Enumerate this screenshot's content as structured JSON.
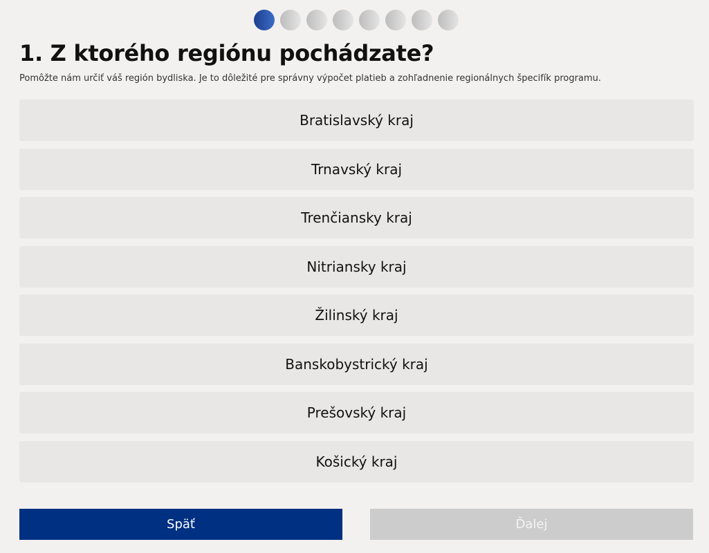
{
  "question": {
    "title": "1. Z ktorého regiónu pochádzate?",
    "subtitle": "Pomôžte nám určiť váš región bydliska. Je to dôležité pre správny výpočet platieb a zohľadnenie regionálnych špecifík programu.",
    "options": [
      "Bratislavský kraj",
      "Trnavský kraj",
      "Trenčiansky kraj",
      "Nitriansky kraj",
      "Žilinský kraj",
      "Banskobystrický kraj",
      "Prešovský kraj",
      "Košický kraj"
    ]
  },
  "buttons": {
    "back": "Späť",
    "next": "Ďalej"
  }
}
